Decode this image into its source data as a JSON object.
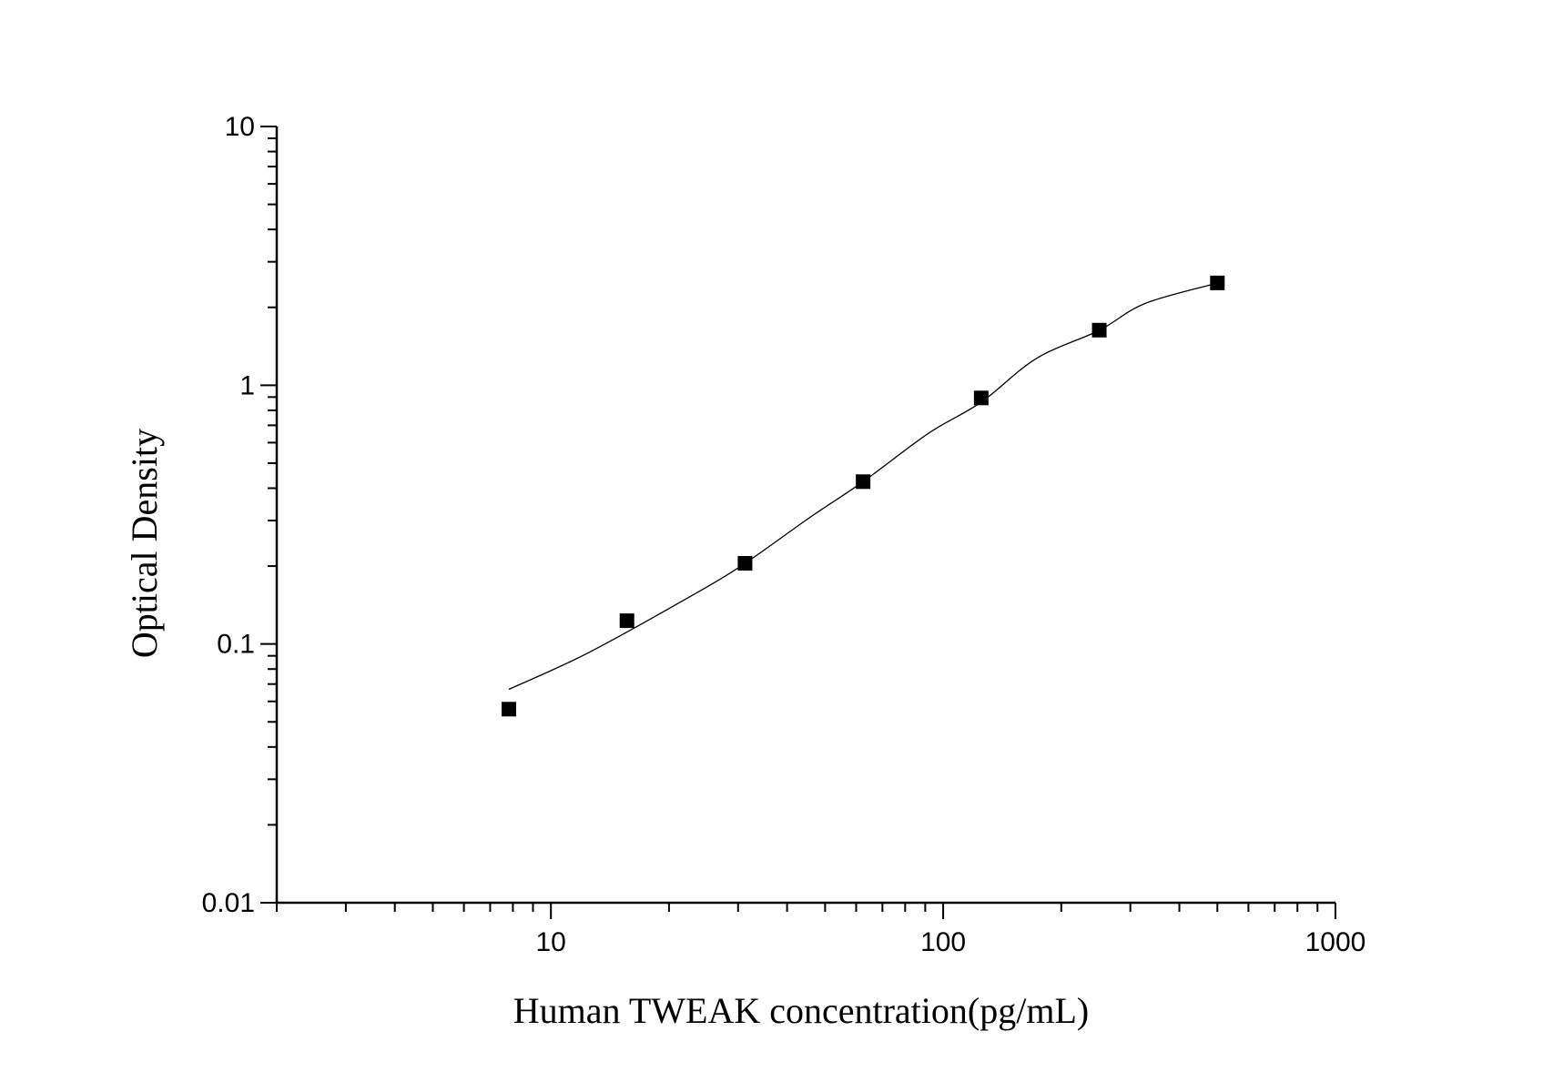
{
  "chart_data": {
    "type": "scatter",
    "title": "",
    "xlabel": "Human TWEAK concentration(pg/mL)",
    "ylabel": "Optical Density",
    "x_scale": "log",
    "y_scale": "log",
    "xlim": [
      2,
      1000
    ],
    "ylim": [
      0.01,
      10
    ],
    "x_ticks": [
      10,
      100,
      1000
    ],
    "x_tick_labels": [
      "10",
      "100",
      "1000"
    ],
    "y_ticks": [
      0.01,
      0.1,
      1,
      10
    ],
    "y_tick_labels": [
      "0.01",
      "0.1",
      "1",
      "10"
    ],
    "grid": false,
    "legend": "none",
    "marker": "square",
    "color": "#000000",
    "points": {
      "x": [
        7.8125,
        15.625,
        31.25,
        62.5,
        125,
        250,
        500
      ],
      "y": [
        0.056,
        0.123,
        0.205,
        0.424,
        0.893,
        1.633,
        2.486
      ]
    },
    "fit_curve": {
      "x": [
        7.81,
        12.46,
        22.9,
        31.25,
        45.8,
        62.5,
        91.6,
        125,
        173,
        250,
        327,
        500
      ],
      "y": [
        0.0668,
        0.0925,
        0.154,
        0.205,
        0.309,
        0.424,
        0.651,
        0.86,
        1.27,
        1.63,
        2.07,
        2.48
      ]
    }
  }
}
